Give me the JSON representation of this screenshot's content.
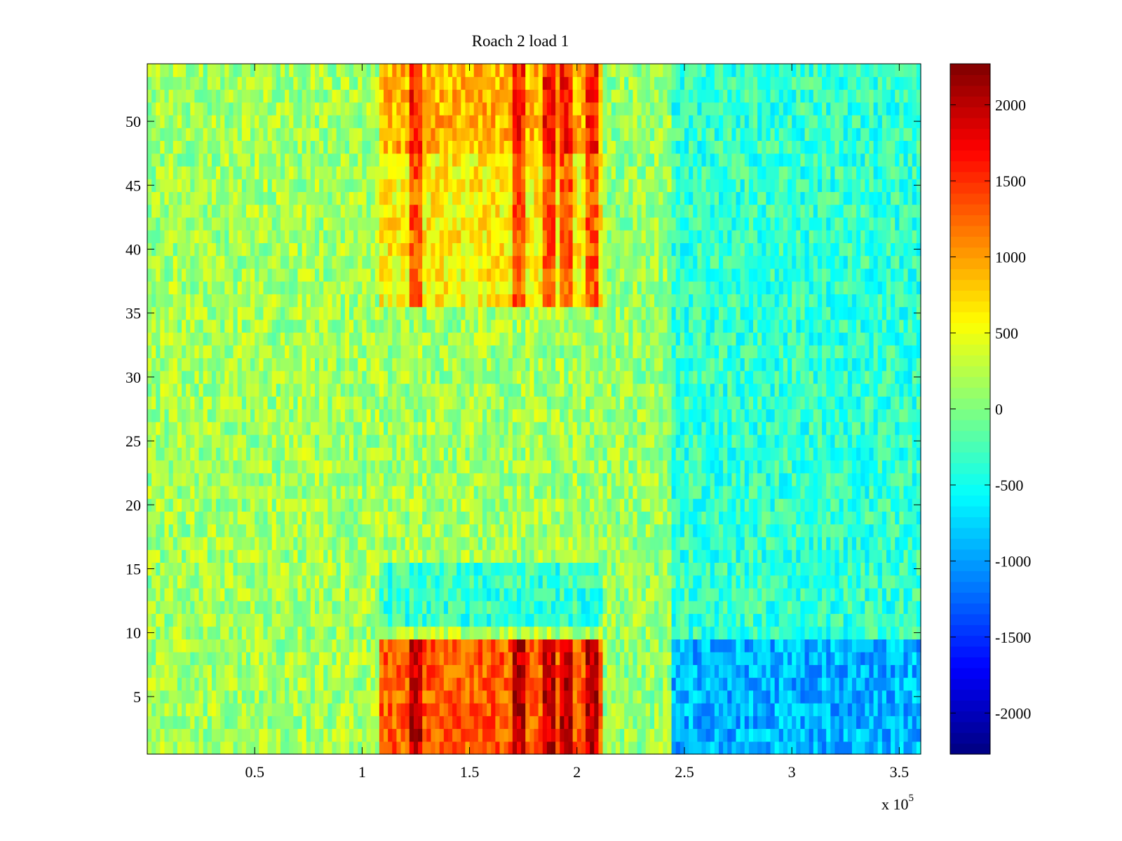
{
  "chart_data": {
    "type": "heatmap",
    "title": "Roach 2 load 1",
    "xlabel": "",
    "ylabel": "",
    "x_multiplier_label": {
      "base": "x 10",
      "exponent": "5"
    },
    "xlim": [
      0,
      3.6
    ],
    "ylim": [
      0.5,
      54.5
    ],
    "x_ticks": [
      0.5,
      1,
      1.5,
      2,
      2.5,
      3,
      3.5
    ],
    "x_tick_labels": [
      "0.5",
      "1",
      "1.5",
      "2",
      "2.5",
      "3",
      "3.5"
    ],
    "y_ticks": [
      5,
      10,
      15,
      20,
      25,
      30,
      35,
      40,
      45,
      50
    ],
    "y_tick_labels": [
      "5",
      "10",
      "15",
      "20",
      "25",
      "30",
      "35",
      "40",
      "45",
      "50"
    ],
    "rows": 54,
    "colormap": "jet",
    "colorbar": {
      "clim": [
        -2270,
        2270
      ],
      "ticks": [
        -2000,
        -1500,
        -1000,
        -500,
        0,
        500,
        1000,
        1500,
        2000
      ],
      "tick_labels": [
        "-2000",
        "-1500",
        "-1000",
        "-500",
        "0",
        "500",
        "1000",
        "1500",
        "2000"
      ]
    },
    "value_regions": [
      {
        "x_range": [
          0,
          1.08
        ],
        "rows": [
          1,
          54
        ],
        "mean": 150
      },
      {
        "x_range": [
          1.08,
          2.12
        ],
        "rows": [
          1,
          9
        ],
        "mean": 1300
      },
      {
        "x_range": [
          1.08,
          2.12
        ],
        "rows": [
          10,
          10
        ],
        "mean": 200
      },
      {
        "x_range": [
          1.08,
          2.12
        ],
        "rows": [
          11,
          15
        ],
        "mean": -350
      },
      {
        "x_range": [
          1.08,
          2.12
        ],
        "rows": [
          16,
          35
        ],
        "mean": 150
      },
      {
        "x_range": [
          1.08,
          2.12
        ],
        "rows": [
          36,
          47
        ],
        "mean": 600
      },
      {
        "x_range": [
          1.08,
          2.12
        ],
        "rows": [
          48,
          54
        ],
        "mean": 900
      },
      {
        "x_range": [
          2.12,
          2.45
        ],
        "rows": [
          1,
          54
        ],
        "mean": 100
      },
      {
        "x_range": [
          2.45,
          3.6
        ],
        "rows": [
          1,
          9
        ],
        "mean": -900
      },
      {
        "x_range": [
          2.45,
          3.6
        ],
        "rows": [
          10,
          54
        ],
        "mean": -350
      }
    ],
    "hot_columns": [
      1.25,
      1.73,
      1.88,
      1.95,
      2.07
    ]
  }
}
